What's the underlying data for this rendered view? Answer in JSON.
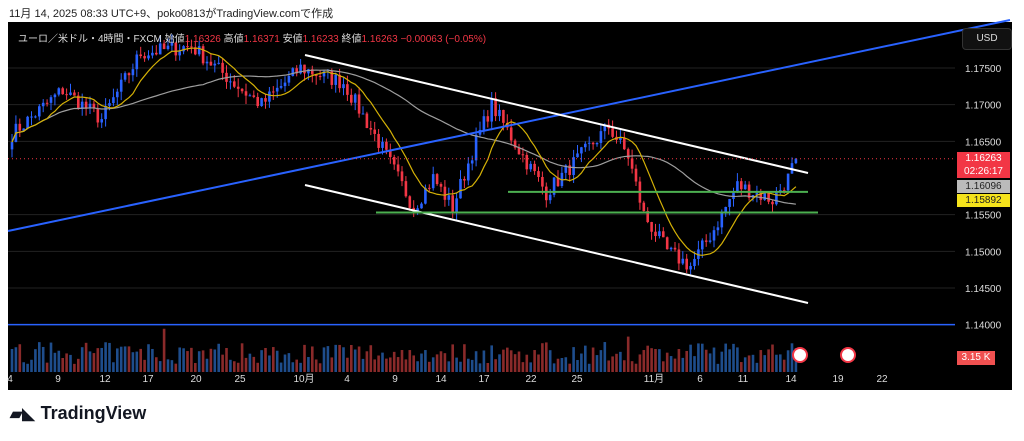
{
  "caption": "11月 14, 2025 08:33 UTC+9、poko0813がTradingView.comで作成",
  "legend": {
    "symbol": "ユーロ／米ドル・4時間・FXCM",
    "open_label": "始値",
    "open": "1.16326",
    "high_label": "高値",
    "high": "1.16371",
    "low_label": "安値",
    "low": "1.16233",
    "close_label": "終値",
    "close": "1.16263",
    "change": "−0.00063 (−0.05%)"
  },
  "currency": "USD",
  "price_labels": {
    "last": "1.16263",
    "countdown": "02:26:17",
    "ma_gray": "1.16096",
    "ma_yellow": "1.15892",
    "volume": "3.15 K"
  },
  "brand": "TradingView",
  "colors": {
    "up": "#2962ff",
    "down": "#f23645",
    "ma_fast": "#d4b106",
    "ma_slow": "#9e9e9e",
    "trend": "#2962ff",
    "channel": "#ffffff",
    "support": "#4caf50"
  },
  "chart_data": {
    "type": "candlestick",
    "title": "EUR/USD 4H FXCM",
    "y_ticks": [
      "1.17500",
      "1.17000",
      "1.16500",
      "1.15500",
      "1.15000",
      "1.14500",
      "1.14000"
    ],
    "y_tick_values": [
      1.175,
      1.17,
      1.165,
      1.155,
      1.15,
      1.145,
      1.14
    ],
    "x_ticks": [
      "4",
      "9",
      "12",
      "17",
      "20",
      "25",
      "10月",
      "4",
      "9",
      "14",
      "17",
      "22",
      "25",
      "11月",
      "6",
      "11",
      "14",
      "19",
      "22"
    ],
    "ylim": [
      1.1335,
      1.1836
    ],
    "price_path": [
      [
        0,
        1.166
      ],
      [
        13,
        1.172
      ],
      [
        23,
        1.168
      ],
      [
        33,
        1.177
      ],
      [
        46,
        1.178
      ],
      [
        59,
        1.172
      ],
      [
        64,
        1.17
      ],
      [
        74,
        1.175
      ],
      [
        85,
        1.173
      ],
      [
        95,
        1.164
      ],
      [
        103,
        1.156
      ],
      [
        108,
        1.16
      ],
      [
        113,
        1.156
      ],
      [
        119,
        1.165
      ],
      [
        123,
        1.17
      ],
      [
        131,
        1.163
      ],
      [
        137,
        1.158
      ],
      [
        144,
        1.162
      ],
      [
        153,
        1.167
      ],
      [
        158,
        1.163
      ],
      [
        162,
        1.155
      ],
      [
        168,
        1.15
      ],
      [
        174,
        1.148
      ],
      [
        180,
        1.153
      ],
      [
        186,
        1.159
      ],
      [
        195,
        1.157
      ],
      [
        199,
        1.16
      ],
      [
        201,
        1.16263
      ]
    ],
    "horizontal_levels": [
      1.1581,
      1.1553,
      1.14
    ],
    "volume_last": 3150
  }
}
